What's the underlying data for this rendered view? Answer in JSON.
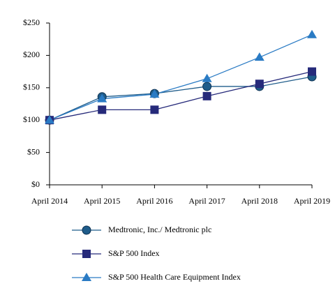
{
  "chart_data": {
    "type": "line",
    "categories": [
      "April 2014",
      "April 2015",
      "April 2016",
      "April 2017",
      "April 2018",
      "April 2019"
    ],
    "series": [
      {
        "name": "Medtronic, Inc./ Medtronic plc",
        "color": "#1f5c8a",
        "marker": "circle",
        "values": [
          100,
          136,
          141,
          152,
          152,
          167
        ]
      },
      {
        "name": "S&P 500 Index",
        "color": "#262a7a",
        "marker": "square",
        "values": [
          100,
          116,
          116,
          137,
          156,
          175
        ]
      },
      {
        "name": "S&P 500 Health Care Equipment Index",
        "color": "#2a7bc4",
        "marker": "triangle",
        "values": [
          100,
          133,
          140,
          164,
          197,
          232
        ]
      }
    ],
    "ylim": [
      0,
      250
    ],
    "yticks": [
      {
        "value": 0,
        "label": "$0"
      },
      {
        "value": 50,
        "label": "$50"
      },
      {
        "value": 100,
        "label": "$100"
      },
      {
        "value": 150,
        "label": "$150"
      },
      {
        "value": 200,
        "label": "$200"
      },
      {
        "value": 250,
        "label": "$250"
      }
    ],
    "grid": false
  }
}
